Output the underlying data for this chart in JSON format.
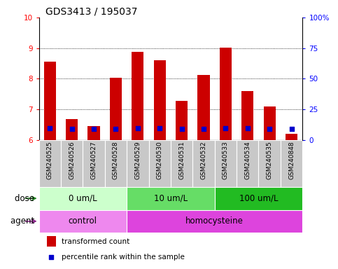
{
  "title": "GDS3413 / 195037",
  "samples": [
    "GSM240525",
    "GSM240526",
    "GSM240527",
    "GSM240528",
    "GSM240529",
    "GSM240530",
    "GSM240531",
    "GSM240532",
    "GSM240533",
    "GSM240534",
    "GSM240535",
    "GSM240848"
  ],
  "bar_values": [
    8.55,
    6.68,
    6.45,
    8.02,
    8.88,
    8.6,
    7.28,
    8.12,
    9.02,
    7.6,
    7.1,
    6.2
  ],
  "percentile_values": [
    9.32,
    9.18,
    9.18,
    9.22,
    9.34,
    9.32,
    9.2,
    9.22,
    9.32,
    9.28,
    9.22,
    9.18
  ],
  "bar_color": "#cc0000",
  "percentile_color": "#0000cc",
  "ylim_left": [
    6,
    10
  ],
  "ylim_right": [
    0,
    100
  ],
  "yticks_left": [
    6,
    7,
    8,
    9,
    10
  ],
  "yticks_right": [
    0,
    25,
    50,
    75,
    100
  ],
  "ytick_labels_right": [
    "0",
    "25",
    "50",
    "75",
    "100%"
  ],
  "grid_values": [
    7,
    8,
    9
  ],
  "dose_groups": [
    {
      "label": "0 um/L",
      "start": 0,
      "end": 4,
      "color": "#ccffcc"
    },
    {
      "label": "10 um/L",
      "start": 4,
      "end": 8,
      "color": "#66dd66"
    },
    {
      "label": "100 um/L",
      "start": 8,
      "end": 12,
      "color": "#22bb22"
    }
  ],
  "agent_groups": [
    {
      "label": "control",
      "start": 0,
      "end": 4,
      "color": "#ee88ee"
    },
    {
      "label": "homocysteine",
      "start": 4,
      "end": 12,
      "color": "#dd44dd"
    }
  ],
  "xlabel_dose": "dose",
  "xlabel_agent": "agent",
  "legend_bar_label": "transformed count",
  "legend_pct_label": "percentile rank within the sample",
  "bar_width": 0.55,
  "tick_fontsize": 7.5,
  "sample_fontsize": 6.5,
  "label_fontsize": 8.5,
  "title_fontsize": 10
}
